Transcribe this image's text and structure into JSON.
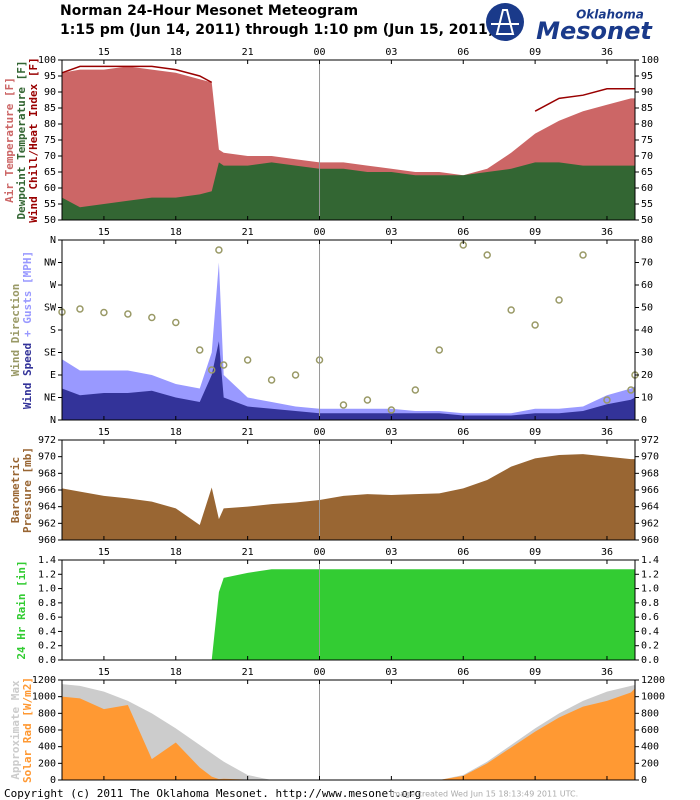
{
  "header": {
    "title": "Norman 24-Hour Mesonet Meteogram",
    "subtitle": "1:15 pm (Jun 14, 2011) through 1:10 pm (Jun 15, 2011)",
    "logo_top": "Oklahoma",
    "logo_bottom": "Mesonet"
  },
  "footer": {
    "copyright": "Copyright (c) 2011 The Oklahoma Mesonet. http://www.mesonet.org",
    "created": "Image created Wed Jun 15 18:13:49 2011 UTC."
  },
  "chart_data": [
    {
      "type": "area",
      "vline": 24,
      "x": [
        13.25,
        14,
        15,
        16,
        17,
        18,
        19,
        19.5,
        19.8,
        20,
        21,
        22,
        23,
        24,
        25,
        26,
        27,
        28,
        29,
        30,
        31,
        32,
        33,
        34,
        35,
        36,
        37,
        37.17
      ],
      "xlim": [
        13.25,
        37.17
      ],
      "xticks": [
        15,
        18,
        21,
        {
          "value": 24,
          "label": "00"
        },
        {
          "value": 27,
          "label": "03"
        },
        {
          "value": 30,
          "label": "06"
        },
        {
          "value": 33,
          "label": "09"
        },
        36
      ],
      "ylim": [
        50,
        100
      ],
      "yticks": [
        50,
        55,
        60,
        65,
        70,
        75,
        80,
        85,
        90,
        95,
        100
      ],
      "series": [
        {
          "name": "Air Temperature [F]",
          "color": "#cc6666",
          "values": [
            96,
            97,
            97,
            98,
            97,
            96,
            94,
            93,
            72,
            71,
            70,
            70,
            69,
            68,
            68,
            67,
            66,
            65,
            65,
            64,
            66,
            71,
            77,
            81,
            84,
            86,
            88,
            88
          ]
        },
        {
          "name": "Dewpoint Temperature [F]",
          "color": "#336633",
          "values": [
            57,
            54,
            55,
            56,
            57,
            57,
            58,
            59,
            68,
            67,
            67,
            68,
            67,
            66,
            66,
            65,
            65,
            64,
            64,
            64,
            65,
            66,
            68,
            68,
            67,
            67,
            67,
            67
          ]
        },
        {
          "name": "Wind Chill/Heat Index [F]",
          "color": "#990000",
          "kind": "line",
          "values": [
            96,
            98,
            98,
            98,
            98,
            97,
            95,
            93,
            null,
            null,
            null,
            null,
            null,
            null,
            null,
            null,
            null,
            null,
            null,
            null,
            null,
            null,
            84,
            88,
            89,
            91,
            91,
            91
          ]
        }
      ]
    },
    {
      "type": "area",
      "vline": 24,
      "x": [
        13.25,
        14,
        15,
        16,
        17,
        18,
        19,
        19.5,
        19.8,
        20,
        21,
        22,
        23,
        24,
        25,
        26,
        27,
        28,
        29,
        30,
        31,
        32,
        33,
        34,
        35,
        36,
        37,
        37.17
      ],
      "xlim": [
        13.25,
        37.17
      ],
      "xticks": [
        15,
        18,
        21,
        {
          "value": 24,
          "label": "00"
        },
        {
          "value": 27,
          "label": "03"
        },
        {
          "value": 30,
          "label": "06"
        },
        {
          "value": 33,
          "label": "09"
        },
        36
      ],
      "ylim": [
        0,
        360
      ],
      "yticks": [
        {
          "value": 0,
          "label": "N"
        },
        {
          "value": 45,
          "label": "NE"
        },
        {
          "value": 90,
          "label": "E"
        },
        {
          "value": 135,
          "label": "SE"
        },
        {
          "value": 180,
          "label": "S"
        },
        {
          "value": 225,
          "label": "SW"
        },
        {
          "value": 270,
          "label": "W"
        },
        {
          "value": 315,
          "label": "NW"
        },
        {
          "value": 360,
          "label": "N"
        }
      ],
      "y2lim": [
        0,
        80
      ],
      "y2ticks": [
        0,
        10,
        20,
        30,
        40,
        50,
        60,
        70,
        80
      ],
      "series": [
        {
          "name": "+ Gusts [MPH]",
          "color": "#9999ff",
          "axis": "y2",
          "values": [
            27,
            22,
            22,
            22,
            20,
            16,
            14,
            30,
            70,
            20,
            10,
            8,
            6,
            5,
            5,
            5,
            5,
            4,
            4,
            3,
            3,
            3,
            5,
            5,
            6,
            11,
            14,
            15
          ]
        },
        {
          "name": "Wind Speed",
          "color": "#333399",
          "axis": "y2",
          "values": [
            14,
            11,
            12,
            12,
            13,
            10,
            8,
            20,
            35,
            10,
            6,
            5,
            4,
            3,
            3,
            3,
            3,
            3,
            3,
            2,
            2,
            2,
            3,
            3,
            4,
            7,
            9,
            10
          ]
        },
        {
          "name": "Wind Direction",
          "color": "#999966",
          "kind": "scatter",
          "values": [
            216,
            222,
            215,
            212,
            205,
            195,
            140,
            100,
            340,
            110,
            120,
            80,
            90,
            120,
            30,
            40,
            20,
            60,
            140,
            350,
            330,
            220,
            190,
            240,
            330,
            40,
            60,
            90
          ]
        }
      ]
    },
    {
      "type": "area",
      "vline": 24,
      "color": "#996633",
      "ylabel": [
        "Barometric",
        "Pressure [mb]"
      ],
      "x": [
        13.25,
        14,
        15,
        16,
        17,
        18,
        19,
        19.5,
        19.8,
        20,
        21,
        22,
        23,
        24,
        25,
        26,
        27,
        28,
        29,
        30,
        31,
        32,
        33,
        34,
        35,
        36,
        37,
        37.17
      ],
      "xlim": [
        13.25,
        37.17
      ],
      "xticks": [
        15,
        18,
        21,
        {
          "value": 24,
          "label": "00"
        },
        {
          "value": 27,
          "label": "03"
        },
        {
          "value": 30,
          "label": "06"
        },
        {
          "value": 33,
          "label": "09"
        },
        36
      ],
      "ylim": [
        960,
        972
      ],
      "yticks": [
        960,
        962,
        964,
        966,
        968,
        970,
        972
      ],
      "values": [
        966.2,
        965.8,
        965.3,
        965,
        964.6,
        963.8,
        961.8,
        966.3,
        962.5,
        963.8,
        964,
        964.3,
        964.5,
        964.8,
        965.3,
        965.5,
        965.4,
        965.5,
        965.6,
        966.2,
        967.2,
        968.8,
        969.8,
        970.2,
        970.3,
        970,
        969.7,
        969.7
      ]
    },
    {
      "type": "area",
      "vline": 24,
      "color": "#33cc33",
      "ylabel": [
        "24 Hr Rain [in]"
      ],
      "x": [
        13.25,
        14,
        15,
        16,
        17,
        18,
        19,
        19.5,
        19.8,
        20,
        21,
        22,
        23,
        24,
        25,
        26,
        27,
        28,
        29,
        30,
        31,
        32,
        33,
        34,
        35,
        36,
        37,
        37.17
      ],
      "xlim": [
        13.25,
        37.17
      ],
      "xticks": [
        15,
        18,
        21,
        {
          "value": 24,
          "label": "00"
        },
        {
          "value": 27,
          "label": "03"
        },
        {
          "value": 30,
          "label": "06"
        },
        {
          "value": 33,
          "label": "09"
        },
        36
      ],
      "ylim": [
        0,
        1.4
      ],
      "yticks": [
        {
          "value": 0,
          "label": "0.0"
        },
        0.2,
        0.4,
        0.6,
        0.8,
        {
          "value": 1,
          "label": "1.0"
        },
        1.2,
        1.4
      ],
      "values": [
        0,
        0,
        0,
        0,
        0,
        0,
        0,
        0,
        0.95,
        1.15,
        1.22,
        1.27,
        1.27,
        1.27,
        1.27,
        1.27,
        1.27,
        1.27,
        1.27,
        1.27,
        1.27,
        1.27,
        1.27,
        1.27,
        1.27,
        1.27,
        1.27,
        1.27
      ]
    },
    {
      "type": "area",
      "vline": 24,
      "x": [
        13.25,
        14,
        15,
        16,
        17,
        18,
        19,
        19.5,
        19.8,
        20,
        21,
        22,
        23,
        24,
        25,
        26,
        27,
        28,
        29,
        30,
        31,
        32,
        33,
        34,
        35,
        36,
        37,
        37.17
      ],
      "xlim": [
        13.25,
        37.17
      ],
      "xticks": [
        15,
        18,
        21,
        {
          "value": 24,
          "label": "00"
        },
        {
          "value": 27,
          "label": "03"
        },
        {
          "value": 30,
          "label": "06"
        },
        {
          "value": 33,
          "label": "09"
        },
        36
      ],
      "ylim": [
        0,
        1200
      ],
      "yticks": [
        0,
        200,
        400,
        600,
        800,
        1000,
        1200
      ],
      "series": [
        {
          "name": "Approximate Max",
          "color": "#cccccc",
          "values": [
            1150,
            1130,
            1060,
            950,
            800,
            620,
            420,
            320,
            260,
            220,
            60,
            0,
            0,
            0,
            0,
            0,
            0,
            0,
            0,
            60,
            220,
            420,
            620,
            800,
            950,
            1060,
            1130,
            1140
          ]
        },
        {
          "name": "Solar Rad [W/m2]",
          "color": "#ff9933",
          "values": [
            1000,
            980,
            850,
            900,
            250,
            450,
            150,
            40,
            10,
            15,
            5,
            0,
            0,
            0,
            0,
            0,
            0,
            0,
            0,
            50,
            200,
            390,
            580,
            750,
            880,
            950,
            1050,
            1100
          ]
        }
      ]
    }
  ]
}
